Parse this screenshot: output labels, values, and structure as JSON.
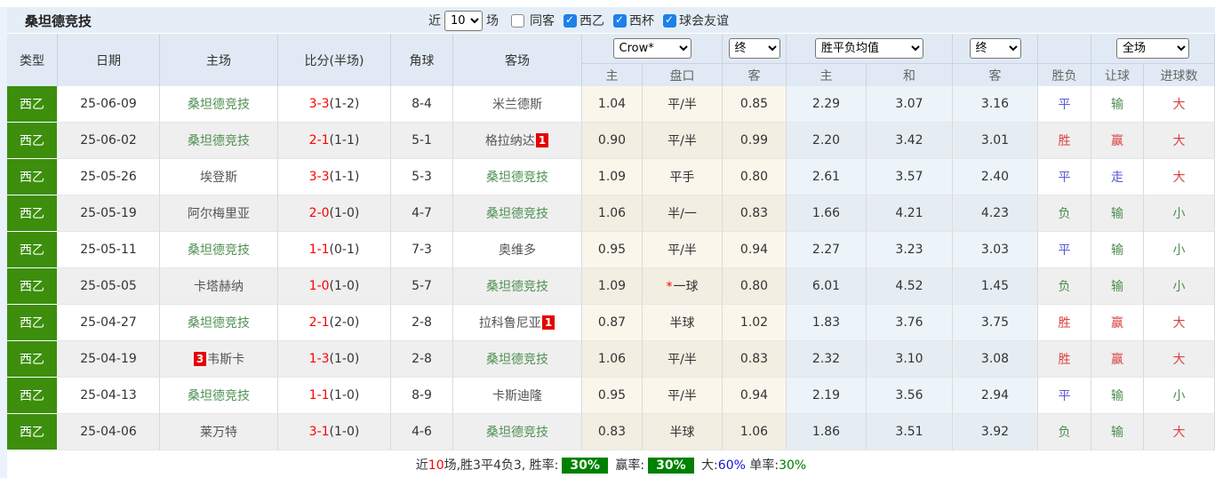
{
  "title": "桑坦德竞技",
  "filters": {
    "near_label": "近",
    "matches_count": "10",
    "unit_label": "场",
    "checkboxes": [
      {
        "label": "同客",
        "checked": false
      },
      {
        "label": "西乙",
        "checked": true
      },
      {
        "label": "西杯",
        "checked": true
      },
      {
        "label": "球会友谊",
        "checked": true
      }
    ]
  },
  "header": {
    "cols": [
      "类型",
      "日期",
      "主场",
      "比分(半场)",
      "角球",
      "客场"
    ],
    "asian": {
      "bookmaker_select": "Crow*",
      "time_select": "终",
      "sub": [
        "主",
        "盘口",
        "客"
      ]
    },
    "euro": {
      "avg_select": "胜平负均值",
      "time_select": "终",
      "sub": [
        "主",
        "和",
        "客"
      ]
    },
    "result": {
      "scope_select": "全场",
      "sub": [
        "胜负",
        "让球",
        "进球数"
      ]
    }
  },
  "colors": {
    "league_tag": "#3C8E0C",
    "self_team_green": "#4E9052",
    "opponent_gray": "#555555",
    "score_red": "#FF0000",
    "result_win_red": "#DC4040",
    "result_draw_blue": "#5A5AD2",
    "result_lose_green": "#4E8D4E",
    "rank_badge_red": "#E60000",
    "pct_badge_green": "#008000",
    "checkbox_blue": "#1E80E8"
  },
  "rows": [
    {
      "league": "西乙",
      "date": "25-06-09",
      "home": {
        "name": "桑坦德竞技",
        "rank": "",
        "self": true
      },
      "score": {
        "full": "3-3",
        "half": "(1-2)"
      },
      "corner": "8-4",
      "away": {
        "name": "米兰德斯",
        "rank": "",
        "self": false
      },
      "asian": {
        "home": "1.04",
        "line": "平/半",
        "away": "0.85",
        "star": false
      },
      "euro": {
        "home": "2.29",
        "draw": "3.07",
        "away": "3.16"
      },
      "res": {
        "outcome": {
          "text": "平",
          "color": "blue"
        },
        "handicap": {
          "text": "输",
          "color": "green"
        },
        "goals": {
          "text": "大",
          "color": "red"
        }
      }
    },
    {
      "league": "西乙",
      "date": "25-06-02",
      "home": {
        "name": "桑坦德竞技",
        "rank": "",
        "self": true
      },
      "score": {
        "full": "2-1",
        "half": "(1-1)"
      },
      "corner": "5-1",
      "away": {
        "name": "格拉纳达",
        "rank": "1",
        "self": false
      },
      "asian": {
        "home": "0.90",
        "line": "平/半",
        "away": "0.99",
        "star": false
      },
      "euro": {
        "home": "2.20",
        "draw": "3.42",
        "away": "3.01"
      },
      "res": {
        "outcome": {
          "text": "胜",
          "color": "red"
        },
        "handicap": {
          "text": "赢",
          "color": "red"
        },
        "goals": {
          "text": "大",
          "color": "red"
        }
      }
    },
    {
      "league": "西乙",
      "date": "25-05-26",
      "home": {
        "name": "埃登斯",
        "rank": "",
        "self": false
      },
      "score": {
        "full": "3-3",
        "half": "(1-1)"
      },
      "corner": "5-3",
      "away": {
        "name": "桑坦德竞技",
        "rank": "",
        "self": true
      },
      "asian": {
        "home": "1.09",
        "line": "平手",
        "away": "0.80",
        "star": false
      },
      "euro": {
        "home": "2.61",
        "draw": "3.57",
        "away": "2.40"
      },
      "res": {
        "outcome": {
          "text": "平",
          "color": "blue"
        },
        "handicap": {
          "text": "走",
          "color": "blue"
        },
        "goals": {
          "text": "大",
          "color": "red"
        }
      }
    },
    {
      "league": "西乙",
      "date": "25-05-19",
      "home": {
        "name": "阿尔梅里亚",
        "rank": "",
        "self": false
      },
      "score": {
        "full": "2-0",
        "half": "(1-0)"
      },
      "corner": "4-7",
      "away": {
        "name": "桑坦德竞技",
        "rank": "",
        "self": true
      },
      "asian": {
        "home": "1.06",
        "line": "半/一",
        "away": "0.83",
        "star": false
      },
      "euro": {
        "home": "1.66",
        "draw": "4.21",
        "away": "4.23"
      },
      "res": {
        "outcome": {
          "text": "负",
          "color": "green"
        },
        "handicap": {
          "text": "输",
          "color": "green"
        },
        "goals": {
          "text": "小",
          "color": "green"
        }
      }
    },
    {
      "league": "西乙",
      "date": "25-05-11",
      "home": {
        "name": "桑坦德竞技",
        "rank": "",
        "self": true
      },
      "score": {
        "full": "1-1",
        "half": "(0-1)"
      },
      "corner": "7-3",
      "away": {
        "name": "奥维多",
        "rank": "",
        "self": false
      },
      "asian": {
        "home": "0.95",
        "line": "平/半",
        "away": "0.94",
        "star": false
      },
      "euro": {
        "home": "2.27",
        "draw": "3.23",
        "away": "3.03"
      },
      "res": {
        "outcome": {
          "text": "平",
          "color": "blue"
        },
        "handicap": {
          "text": "输",
          "color": "green"
        },
        "goals": {
          "text": "小",
          "color": "green"
        }
      }
    },
    {
      "league": "西乙",
      "date": "25-05-05",
      "home": {
        "name": "卡塔赫纳",
        "rank": "",
        "self": false
      },
      "score": {
        "full": "1-0",
        "half": "(1-0)"
      },
      "corner": "5-7",
      "away": {
        "name": "桑坦德竞技",
        "rank": "",
        "self": true
      },
      "asian": {
        "home": "1.09",
        "line": "一球",
        "away": "0.80",
        "star": true
      },
      "euro": {
        "home": "6.01",
        "draw": "4.52",
        "away": "1.45"
      },
      "res": {
        "outcome": {
          "text": "负",
          "color": "green"
        },
        "handicap": {
          "text": "输",
          "color": "green"
        },
        "goals": {
          "text": "小",
          "color": "green"
        }
      }
    },
    {
      "league": "西乙",
      "date": "25-04-27",
      "home": {
        "name": "桑坦德竞技",
        "rank": "",
        "self": true
      },
      "score": {
        "full": "2-1",
        "half": "(2-0)"
      },
      "corner": "2-8",
      "away": {
        "name": "拉科鲁尼亚",
        "rank": "1",
        "self": false
      },
      "asian": {
        "home": "0.87",
        "line": "半球",
        "away": "1.02",
        "star": false
      },
      "euro": {
        "home": "1.83",
        "draw": "3.76",
        "away": "3.75"
      },
      "res": {
        "outcome": {
          "text": "胜",
          "color": "red"
        },
        "handicap": {
          "text": "赢",
          "color": "red"
        },
        "goals": {
          "text": "大",
          "color": "red"
        }
      }
    },
    {
      "league": "西乙",
      "date": "25-04-19",
      "home": {
        "name": "韦斯卡",
        "rank": "3",
        "self": false
      },
      "score": {
        "full": "1-3",
        "half": "(1-0)"
      },
      "corner": "2-8",
      "away": {
        "name": "桑坦德竞技",
        "rank": "",
        "self": true
      },
      "asian": {
        "home": "1.06",
        "line": "平/半",
        "away": "0.83",
        "star": false
      },
      "euro": {
        "home": "2.32",
        "draw": "3.10",
        "away": "3.08"
      },
      "res": {
        "outcome": {
          "text": "胜",
          "color": "red"
        },
        "handicap": {
          "text": "赢",
          "color": "red"
        },
        "goals": {
          "text": "大",
          "color": "red"
        }
      }
    },
    {
      "league": "西乙",
      "date": "25-04-13",
      "home": {
        "name": "桑坦德竞技",
        "rank": "",
        "self": true
      },
      "score": {
        "full": "1-1",
        "half": "(1-0)"
      },
      "corner": "8-9",
      "away": {
        "name": "卡斯迪隆",
        "rank": "",
        "self": false
      },
      "asian": {
        "home": "0.95",
        "line": "平/半",
        "away": "0.94",
        "star": false
      },
      "euro": {
        "home": "2.19",
        "draw": "3.56",
        "away": "2.94"
      },
      "res": {
        "outcome": {
          "text": "平",
          "color": "blue"
        },
        "handicap": {
          "text": "输",
          "color": "green"
        },
        "goals": {
          "text": "小",
          "color": "green"
        }
      }
    },
    {
      "league": "西乙",
      "date": "25-04-06",
      "home": {
        "name": "莱万特",
        "rank": "",
        "self": false
      },
      "score": {
        "full": "3-1",
        "half": "(1-0)"
      },
      "corner": "4-6",
      "away": {
        "name": "桑坦德竞技",
        "rank": "",
        "self": true
      },
      "asian": {
        "home": "0.83",
        "line": "半球",
        "away": "1.06",
        "star": false
      },
      "euro": {
        "home": "1.86",
        "draw": "3.51",
        "away": "3.92"
      },
      "res": {
        "outcome": {
          "text": "负",
          "color": "green"
        },
        "handicap": {
          "text": "输",
          "color": "green"
        },
        "goals": {
          "text": "大",
          "color": "red"
        }
      }
    }
  ],
  "footer": {
    "parts": [
      {
        "text": "近"
      },
      {
        "text": "10",
        "color": "red"
      },
      {
        "text": "场,胜3平4负3, 胜率:"
      },
      {
        "text": "30%",
        "badge": true
      },
      {
        "text": " 赢率:"
      },
      {
        "text": "30%",
        "badge": true
      },
      {
        "text": " 大:"
      },
      {
        "text": "60%",
        "color": "blue"
      },
      {
        "text": " 单率:"
      },
      {
        "text": "30%",
        "color": "green"
      }
    ]
  }
}
